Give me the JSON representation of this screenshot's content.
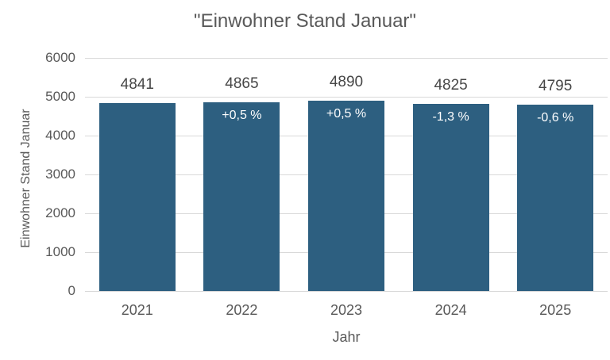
{
  "chart_data": {
    "type": "bar",
    "title": "\"Einwohner Stand Januar\"",
    "xlabel": "Jahr",
    "ylabel": "Einwohner Stand Januar",
    "categories": [
      "2021",
      "2022",
      "2023",
      "2024",
      "2025"
    ],
    "values": [
      4841,
      4865,
      4890,
      4825,
      4795
    ],
    "value_labels": [
      "4841",
      "4865",
      "4890",
      "4825",
      "4795"
    ],
    "bar_annotations": [
      "",
      "+0,5 %",
      "+0,5 %",
      "-1,3 %",
      "-0,6 %"
    ],
    "ylim": [
      0,
      6000
    ],
    "yticks": [
      0,
      1000,
      2000,
      3000,
      4000,
      5000,
      6000
    ],
    "grid": true,
    "legend": false,
    "colors": {
      "bar": "#2d5f80",
      "gridline": "#d9d9d9",
      "axis_text": "#595959",
      "value_label_text": "#474747",
      "bar_annotation_text": "#ffffff",
      "background": "#ffffff"
    }
  }
}
